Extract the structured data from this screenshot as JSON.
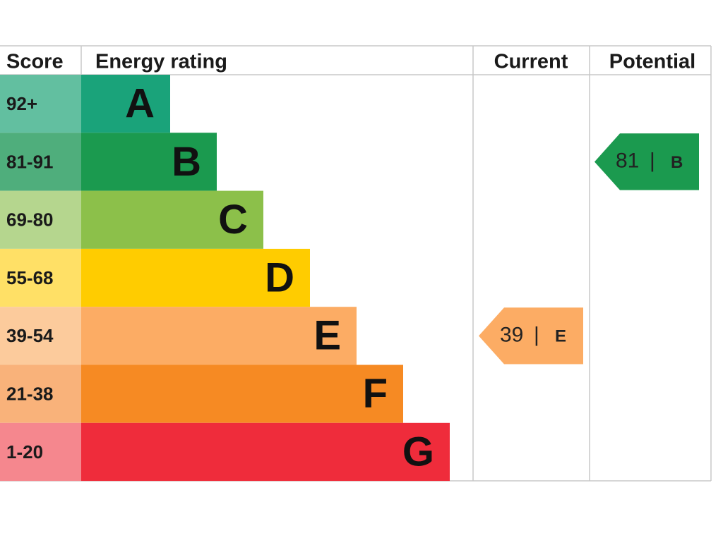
{
  "table": {
    "headers": {
      "score": "Score",
      "rating": "Energy rating",
      "current": "Current",
      "potential": "Potential"
    },
    "bands": [
      {
        "score": "92+",
        "letter": "A",
        "color": "#1aa37a",
        "score_color": "#62bfa0"
      },
      {
        "score": "81-91",
        "letter": "B",
        "color": "#1b9a4f",
        "score_color": "#4fae7c"
      },
      {
        "score": "69-80",
        "letter": "C",
        "color": "#8cc04a",
        "score_color": "#b5d68e"
      },
      {
        "score": "55-68",
        "letter": "D",
        "color": "#ffcc00",
        "score_color": "#ffe066"
      },
      {
        "score": "39-54",
        "letter": "E",
        "color": "#fcac64",
        "score_color": "#fccb9c"
      },
      {
        "score": "21-38",
        "letter": "F",
        "color": "#f68a23",
        "score_color": "#f9b27a"
      },
      {
        "score": "1-20",
        "letter": "G",
        "color": "#ef2c3b",
        "score_color": "#f5878e"
      }
    ],
    "current": {
      "value": 39,
      "separator": "|",
      "letter": "E",
      "color": "#fcac64"
    },
    "potential": {
      "value": 81,
      "separator": "|",
      "letter": "B",
      "color": "#1b9a4f"
    }
  }
}
